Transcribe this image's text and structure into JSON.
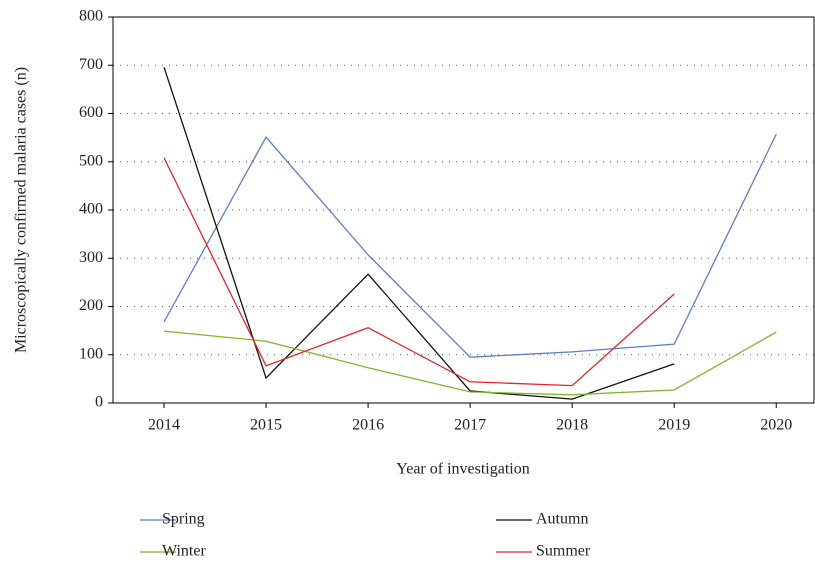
{
  "chart_data": {
    "type": "line",
    "x_label": "Year of investigation",
    "y_label": "Microscopically confirmed malaria cases (n)",
    "x": [
      2014,
      2015,
      2016,
      2017,
      2018,
      2019,
      2020
    ],
    "series": [
      {
        "name": "Spring",
        "color": "#5b7fc4",
        "values": [
          168,
          551,
          307,
          95,
          106,
          122,
          557
        ]
      },
      {
        "name": "Autumn",
        "color": "#111111",
        "values": [
          696,
          52,
          267,
          25,
          8,
          81,
          null
        ]
      },
      {
        "name": "Winter",
        "color": "#7ab829",
        "values": [
          149,
          128,
          73,
          23,
          17,
          27,
          147
        ]
      },
      {
        "name": "Summer",
        "color": "#e3262b",
        "values": [
          508,
          77,
          156,
          44,
          36,
          226,
          null
        ]
      }
    ],
    "xlim": [
      2013.5,
      2020.37
    ],
    "xticks": [
      2014,
      2015,
      2016,
      2017,
      2018,
      2019,
      2020
    ],
    "ylim": [
      0,
      800
    ],
    "yticks": [
      0,
      100,
      200,
      300,
      400,
      500,
      600,
      700,
      800
    ],
    "grid": true
  }
}
